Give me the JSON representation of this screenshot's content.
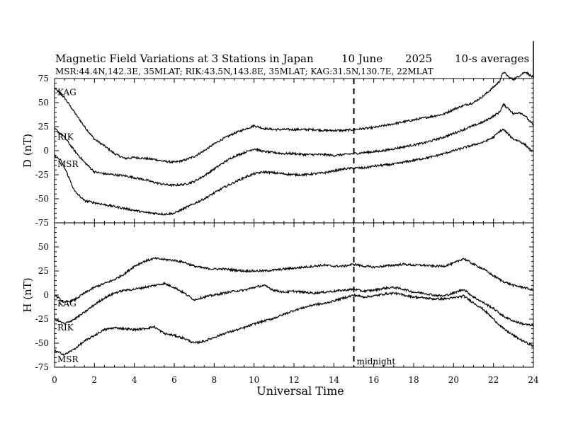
{
  "chart_data": {
    "type": "line",
    "title": "Magnetic Field Variations at 3 Stations in Japan",
    "date": "10 June",
    "year": "2025",
    "averaging": "10-s averages",
    "subtitle": "MSR:44.4N,142.3E, 35MLAT;  RIK:43.5N,143.8E, 35MLAT;  KAG:31.5N,130.7E, 22MLAT",
    "xlabel": "Universal Time",
    "xlim": [
      0,
      24
    ],
    "xticks": [
      0,
      2,
      4,
      6,
      8,
      10,
      12,
      14,
      16,
      18,
      20,
      22,
      24
    ],
    "annotation": {
      "x": 15,
      "label": "midnight"
    },
    "panels": [
      {
        "ylabel": "D (nT)",
        "ylim": [
          -75,
          75
        ],
        "yticks": [
          75,
          50,
          25,
          0,
          -25,
          -50,
          -75
        ],
        "series": [
          {
            "name": "KAG",
            "x": [
              0,
              0.5,
              1,
              1.5,
              2,
              2.5,
              3,
              3.5,
              4,
              4.5,
              5,
              5.5,
              6,
              6.5,
              7,
              7.5,
              8,
              8.5,
              9,
              9.5,
              10,
              10.5,
              11,
              11.5,
              12,
              12.5,
              13,
              13.5,
              14,
              14.5,
              15,
              15.5,
              16,
              16.5,
              17,
              17.5,
              18,
              18.5,
              19,
              19.5,
              20,
              20.5,
              21,
              21.5,
              22,
              22.3,
              22.5,
              22.8,
              23,
              23.3,
              23.6,
              24
            ],
            "values": [
              65,
              55,
              40,
              25,
              12,
              5,
              -3,
              -8,
              -7,
              -8,
              -9,
              -11,
              -12,
              -10,
              -6,
              0,
              7,
              13,
              18,
              22,
              26,
              23,
              22,
              22,
              22,
              22,
              22,
              21,
              21,
              21,
              22,
              23,
              24,
              26,
              28,
              30,
              32,
              34,
              36,
              38,
              43,
              47,
              50,
              57,
              66,
              72,
              82,
              76,
              74,
              78,
              82,
              76
            ]
          },
          {
            "name": "RIK",
            "x": [
              0,
              0.5,
              1,
              1.5,
              2,
              2.5,
              3,
              3.5,
              4,
              4.5,
              5,
              5.5,
              6,
              6.5,
              7,
              7.5,
              8,
              8.5,
              9,
              9.5,
              10,
              10.5,
              11,
              11.5,
              12,
              12.5,
              13,
              13.5,
              14,
              14.5,
              15,
              15.5,
              16,
              16.5,
              17,
              17.5,
              18,
              18.5,
              19,
              19.5,
              20,
              20.5,
              21,
              21.5,
              22,
              22.3,
              22.5,
              22.8,
              23,
              23.3,
              23.6,
              24
            ],
            "values": [
              23,
              14,
              0,
              -12,
              -22,
              -24,
              -25,
              -26,
              -28,
              -30,
              -33,
              -35,
              -36,
              -35,
              -32,
              -26,
              -19,
              -12,
              -6,
              -2,
              2,
              -1,
              -2,
              -3,
              -3,
              -4,
              -4,
              -4,
              -5,
              -4,
              -3,
              -2,
              -1,
              0,
              2,
              4,
              6,
              8,
              11,
              14,
              18,
              22,
              26,
              30,
              36,
              40,
              48,
              43,
              38,
              40,
              36,
              26
            ]
          },
          {
            "name": "MSR",
            "x": [
              0,
              0.3,
              0.6,
              1,
              1.5,
              2,
              2.5,
              3,
              3.5,
              4,
              4.5,
              5,
              5.5,
              6,
              6.5,
              7,
              7.5,
              8,
              8.5,
              9,
              9.5,
              10,
              10.5,
              11,
              11.5,
              12,
              12.5,
              13,
              13.5,
              14,
              14.5,
              15,
              15.5,
              16,
              16.5,
              17,
              17.5,
              18,
              18.5,
              19,
              19.5,
              20,
              20.5,
              21,
              21.5,
              22,
              22.3,
              22.5,
              22.8,
              23,
              23.3,
              23.6,
              24
            ],
            "values": [
              -5,
              -10,
              -22,
              -42,
              -52,
              -54,
              -56,
              -58,
              -60,
              -62,
              -64,
              -65,
              -66,
              -65,
              -60,
              -55,
              -50,
              -44,
              -38,
              -33,
              -28,
              -24,
              -22,
              -23,
              -24,
              -25,
              -25,
              -24,
              -23,
              -21,
              -19,
              -18,
              -18,
              -16,
              -15,
              -14,
              -12,
              -10,
              -8,
              -6,
              -3,
              0,
              3,
              6,
              9,
              14,
              20,
              22,
              16,
              12,
              10,
              6,
              -2
            ]
          }
        ]
      },
      {
        "ylabel": "H (nT)",
        "ylim": [
          -75,
          75
        ],
        "yticks": [
          50,
          25,
          0,
          -25,
          -50,
          -75
        ],
        "series": [
          {
            "name": "KAG",
            "x": [
              0,
              0.5,
              1,
              1.5,
              2,
              2.5,
              3,
              3.5,
              4,
              4.5,
              5,
              5.5,
              6,
              6.5,
              7,
              7.5,
              8,
              8.5,
              9,
              9.5,
              10,
              10.5,
              11,
              11.5,
              12,
              12.5,
              13,
              13.5,
              14,
              14.5,
              15,
              15.5,
              16,
              16.5,
              17,
              17.5,
              18,
              18.5,
              19,
              19.5,
              20,
              20.5,
              21,
              21.5,
              22,
              22.5,
              23,
              23.5,
              24
            ],
            "values": [
              0,
              -8,
              -5,
              2,
              8,
              12,
              16,
              22,
              30,
              35,
              38,
              37,
              36,
              34,
              30,
              28,
              27,
              27,
              26,
              25,
              25,
              25,
              26,
              27,
              28,
              29,
              30,
              31,
              30,
              30,
              32,
              30,
              29,
              30,
              31,
              32,
              31,
              31,
              30,
              30,
              33,
              38,
              32,
              27,
              20,
              14,
              10,
              8,
              5
            ]
          },
          {
            "name": "RIK",
            "x": [
              0,
              0.5,
              1,
              1.5,
              2,
              2.5,
              3,
              3.5,
              4,
              4.5,
              5,
              5.5,
              6,
              6.5,
              7,
              7.5,
              8,
              8.5,
              9,
              9.5,
              10,
              10.5,
              11,
              11.5,
              12,
              12.5,
              13,
              13.5,
              14,
              14.5,
              15,
              15.5,
              16,
              16.5,
              17,
              17.5,
              18,
              18.5,
              19,
              19.5,
              20,
              20.5,
              21,
              21.5,
              22,
              22.5,
              23,
              23.5,
              24
            ],
            "values": [
              -25,
              -30,
              -25,
              -18,
              -10,
              -3,
              2,
              5,
              6,
              8,
              10,
              12,
              8,
              2,
              -5,
              -2,
              0,
              2,
              4,
              5,
              8,
              10,
              5,
              3,
              4,
              3,
              2,
              3,
              4,
              5,
              6,
              4,
              5,
              7,
              8,
              6,
              3,
              2,
              0,
              -1,
              2,
              6,
              -2,
              -8,
              -14,
              -22,
              -27,
              -30,
              -32
            ]
          },
          {
            "name": "MSR",
            "x": [
              0,
              0.5,
              1,
              1.5,
              2,
              2.5,
              3,
              3.5,
              4,
              4.5,
              5,
              5.5,
              6,
              6.5,
              7,
              7.5,
              8,
              8.5,
              9,
              9.5,
              10,
              10.5,
              11,
              11.5,
              12,
              12.5,
              13,
              13.5,
              14,
              14.5,
              15,
              15.5,
              16,
              16.5,
              17,
              17.5,
              18,
              18.5,
              19,
              19.5,
              20,
              20.5,
              21,
              21.5,
              22,
              22.5,
              23,
              23.5,
              24
            ],
            "values": [
              -58,
              -62,
              -56,
              -48,
              -42,
              -36,
              -34,
              -35,
              -36,
              -35,
              -33,
              -40,
              -42,
              -45,
              -50,
              -48,
              -44,
              -40,
              -37,
              -34,
              -30,
              -27,
              -24,
              -20,
              -16,
              -13,
              -10,
              -9,
              -6,
              -3,
              0,
              -2,
              -1,
              1,
              2,
              0,
              -2,
              -3,
              -4,
              -4,
              -3,
              -1,
              -8,
              -15,
              -25,
              -35,
              -42,
              -48,
              -53
            ]
          }
        ]
      }
    ]
  }
}
